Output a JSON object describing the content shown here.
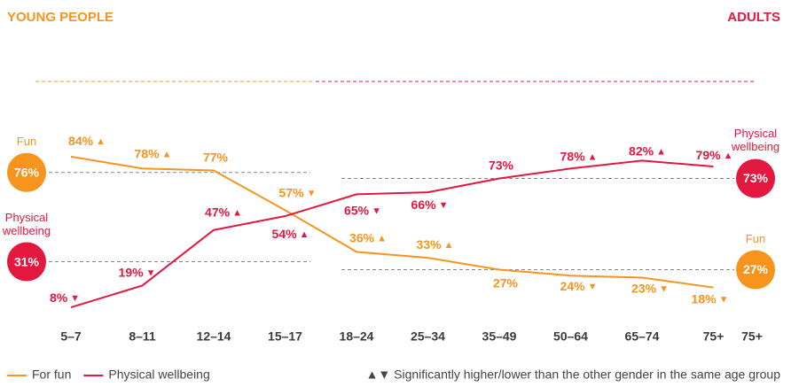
{
  "chart_data": {
    "type": "line",
    "categories": [
      "5–7",
      "8–11",
      "12–14",
      "15–17",
      "18–24",
      "25–34",
      "35–49",
      "50–64",
      "65–74",
      "75+",
      "75+"
    ],
    "ylim": [
      0,
      100
    ],
    "series": [
      {
        "name": "For fun",
        "color": "#f7941d",
        "values": [
          84,
          78,
          77,
          57,
          36,
          33,
          27,
          24,
          23,
          18,
          null
        ],
        "value_labels": [
          "84%",
          "78%",
          "77%",
          "57%",
          "36%",
          "33%",
          "27%",
          "24%",
          "23%",
          "18%",
          null
        ],
        "markers": [
          "▲",
          "▲",
          null,
          "▼",
          "▲",
          "▲",
          null,
          "▼",
          "▼",
          "▼",
          null
        ]
      },
      {
        "name": "Physical wellbeing",
        "color": "#e4173e",
        "values": [
          8,
          19,
          47,
          54,
          65,
          66,
          73,
          78,
          82,
          79,
          null
        ],
        "value_labels": [
          "8%",
          "19%",
          "47%",
          "54%",
          "65%",
          "66%",
          "73%",
          "78%",
          "82%",
          "79%",
          null
        ],
        "markers": [
          "▼",
          "▼",
          "▲",
          "▲",
          "▼",
          "▼",
          null,
          "▲",
          "▲",
          "▲",
          null
        ]
      }
    ],
    "groups": [
      {
        "title": "YOUNG PEOPLE",
        "references": [
          {
            "label": "Fun",
            "value": 76,
            "value_label": "76%",
            "color": "#f7941d"
          },
          {
            "label": "Physical wellbeing",
            "value": 31,
            "value_label": "31%",
            "color": "#e4173e"
          }
        ]
      },
      {
        "title": "ADULTS",
        "references": [
          {
            "label": "Physical wellbeing",
            "value": 73,
            "value_label": "73%",
            "color": "#e4173e"
          },
          {
            "label": "Fun",
            "value": 27,
            "value_label": "27%",
            "color": "#f7941d"
          }
        ]
      }
    ],
    "legend_note": "▲▼ Significantly higher/lower than the other gender in the same age group"
  }
}
